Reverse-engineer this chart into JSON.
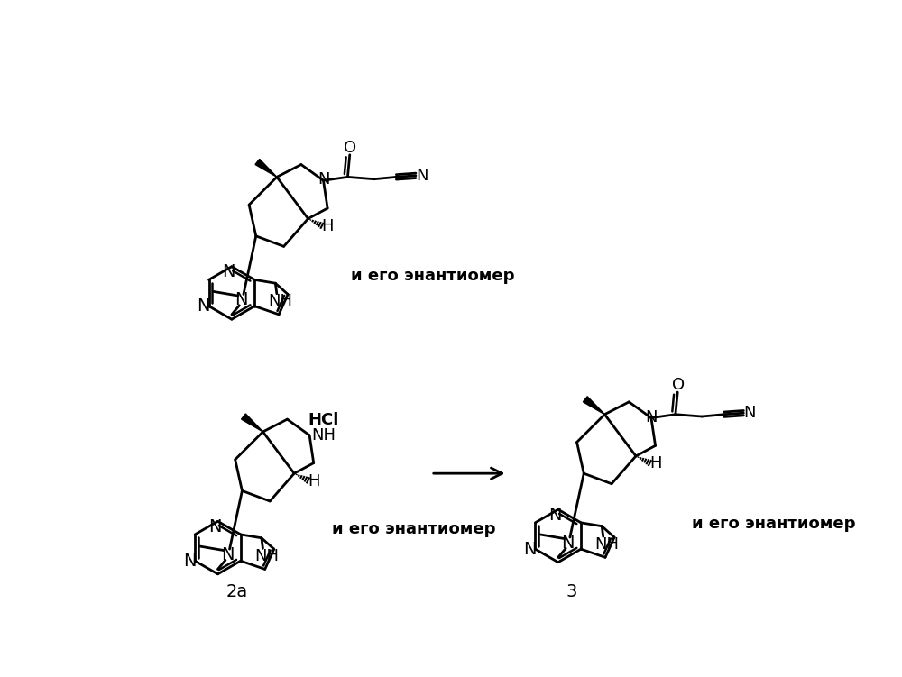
{
  "bg_color": "#ffffff",
  "text_enantiomer": "и его энантиомер",
  "label_2a": "2a",
  "label_3": "3"
}
